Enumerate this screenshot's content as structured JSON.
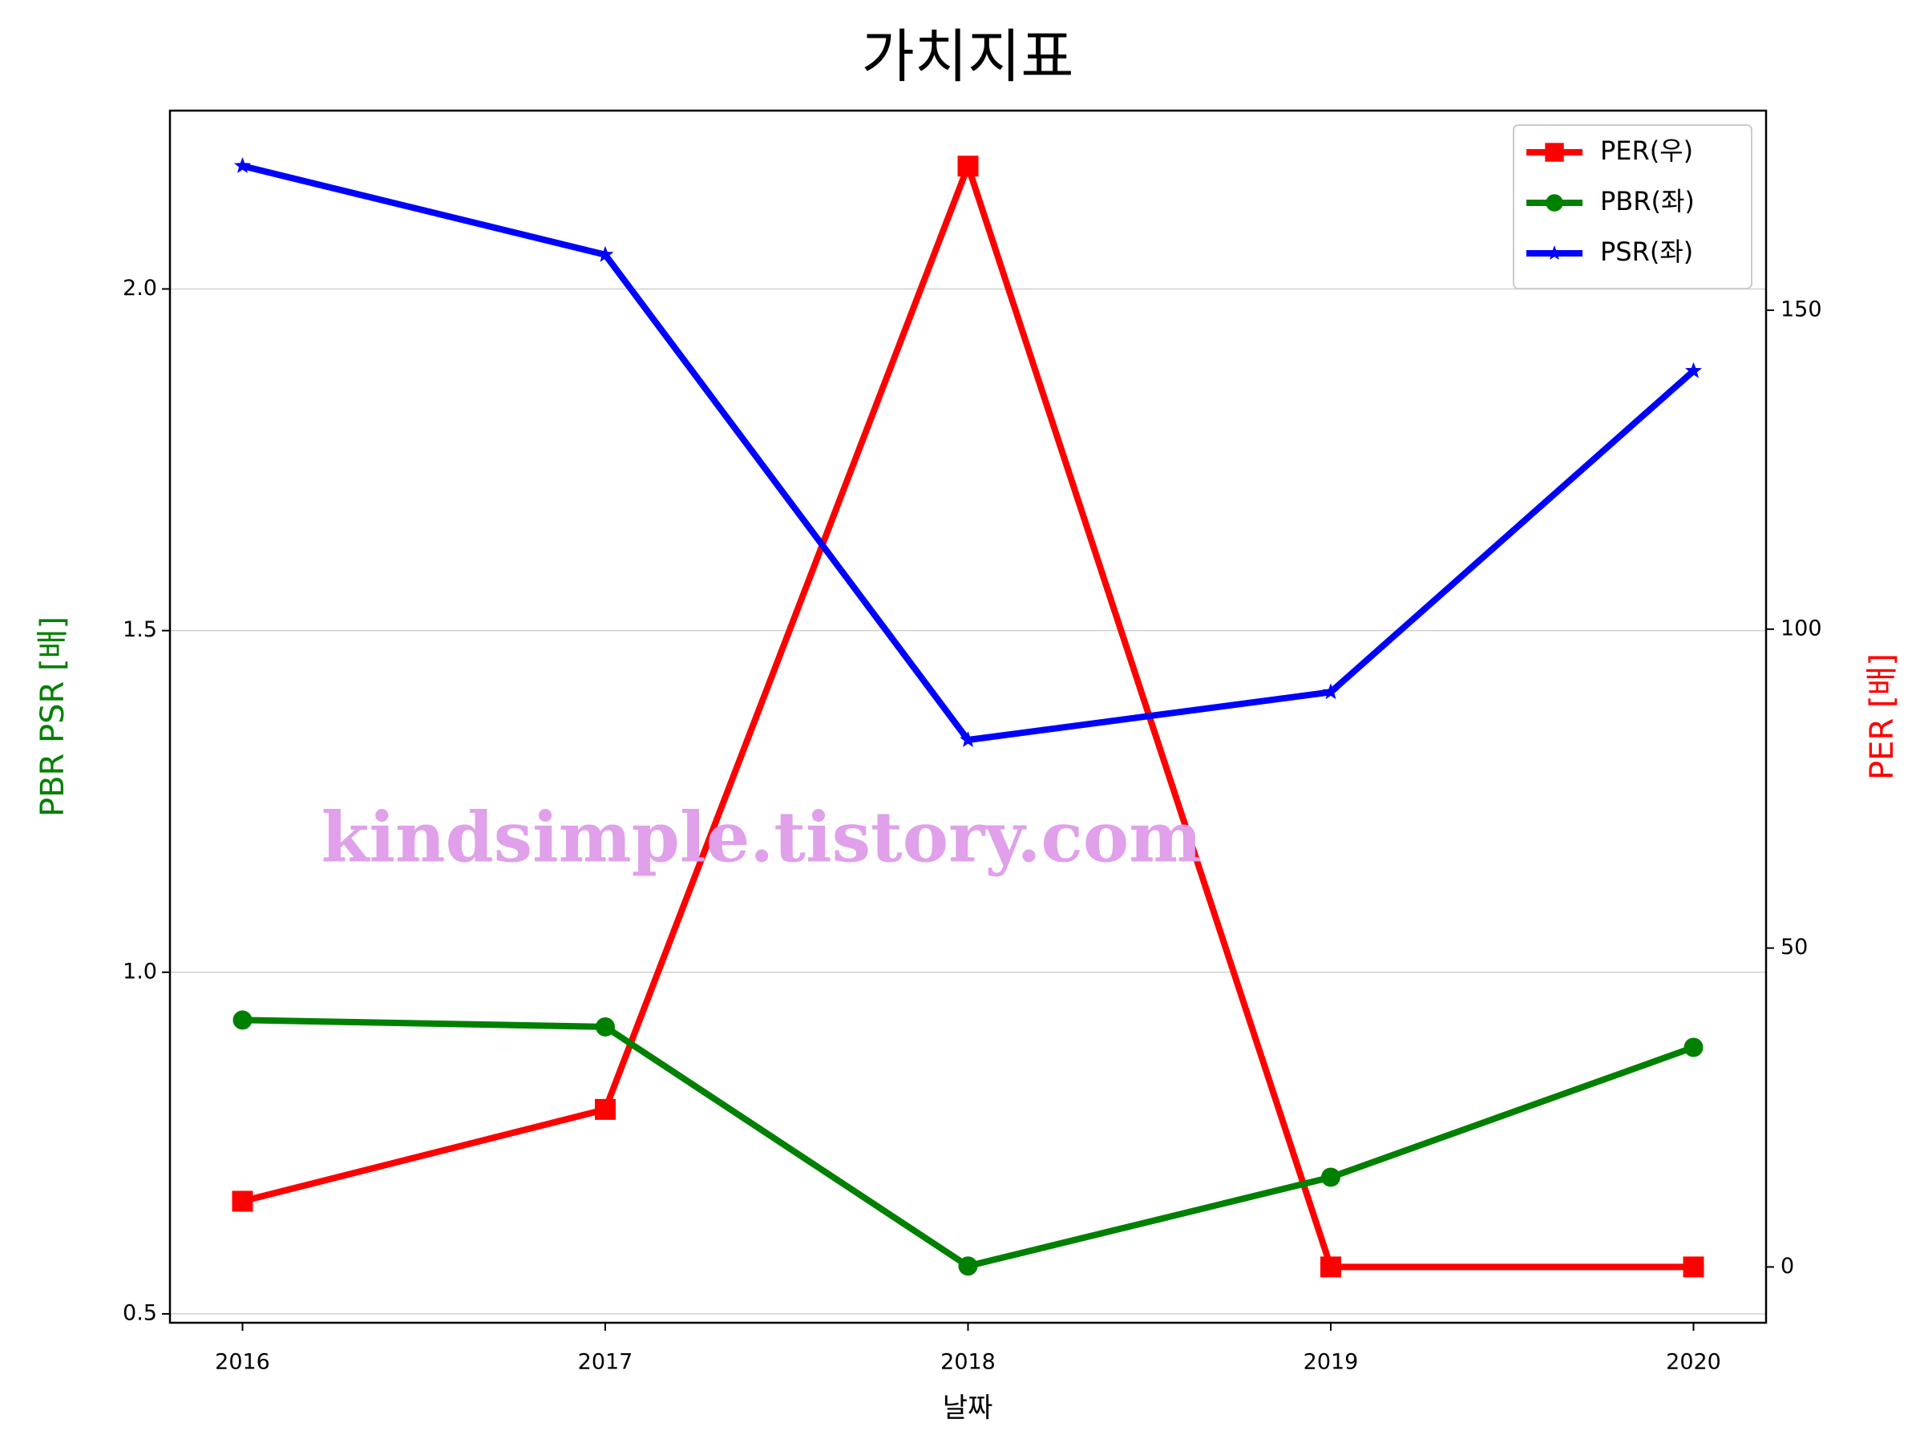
{
  "chart_data": {
    "type": "line",
    "title": "가치지표",
    "xlabel": "날짜",
    "ylabel": "PBR PSR [배]",
    "y2label": "PER [배]",
    "ylabel_color": "green",
    "y2label_color": "red",
    "watermark": "kindsimple.tistory.com",
    "x": [
      2016,
      2017,
      2018,
      2019,
      2020
    ],
    "xlim": [
      2015.8,
      2020.2
    ],
    "xticks": [
      2016,
      2017,
      2018,
      2019,
      2020
    ],
    "ylim": [
      0.487,
      2.261
    ],
    "yticks": [
      {
        "value": 0.5,
        "label": "0.5"
      },
      {
        "value": 1,
        "label": "1.0"
      },
      {
        "value": 1.5,
        "label": "1.5"
      },
      {
        "value": 2,
        "label": "2.0"
      }
    ],
    "y2lim": [
      -8.75,
      181.3
    ],
    "y2ticks": [
      0,
      50,
      100,
      150
    ],
    "grid": "y",
    "legend": "upper right",
    "series": [
      {
        "name": "PER(우)",
        "color": "red",
        "marker": "s",
        "axis": "y2",
        "values": [
          10.3,
          24.7,
          172.6,
          0,
          0
        ]
      },
      {
        "name": "PBR(좌)",
        "color": "green",
        "marker": "o",
        "values": [
          0.93,
          0.92,
          0.57,
          0.7,
          0.89
        ]
      },
      {
        "name": "PSR(좌)",
        "color": "blue",
        "marker": "*",
        "values": [
          2.18,
          2.05,
          1.34,
          1.41,
          1.88
        ]
      }
    ]
  }
}
